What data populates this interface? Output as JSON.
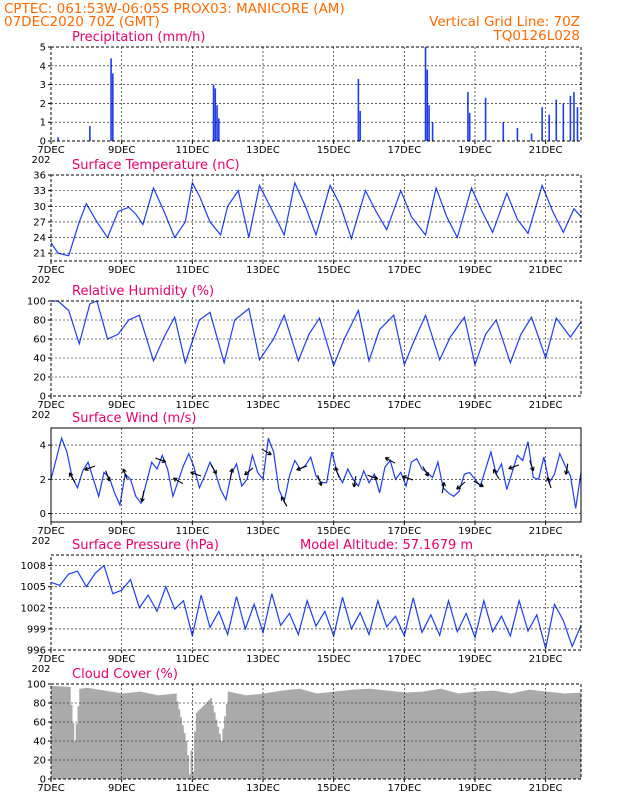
{
  "header": {
    "line1": "CPTEC:   061:53W-06:05S   PROX03: MANICORE (AM)",
    "line2_left": "07DEC2020 70Z (GMT)",
    "line2_right": "Vertical Grid Line: 70Z",
    "line3_right": "TQ0126L028"
  },
  "x_axis": {
    "day_min": 7,
    "day_max": 22,
    "ticks": [
      7,
      9,
      11,
      13,
      15,
      17,
      19,
      21
    ],
    "labels": [
      "7DEC",
      "9DEC",
      "11DEC",
      "13DEC",
      "15DEC",
      "17DEC",
      "19DEC",
      "21DEC"
    ],
    "year_fragment": "202"
  },
  "colors": {
    "header": "#ff6a00",
    "title": "#e6006e",
    "series": "#1f3df0",
    "cloud": "#aaaaaa",
    "grid": "#000000"
  },
  "chart_data": [
    {
      "id": "precip",
      "type": "bar",
      "title": "Precipitation (mm/h)",
      "ylim": [
        0,
        5
      ],
      "yticks": [
        0,
        1,
        2,
        3,
        4,
        5
      ],
      "x": [
        7.2,
        8.1,
        8.7,
        8.75,
        11.6,
        11.65,
        11.7,
        11.75,
        15.7,
        15.75,
        17.6,
        17.65,
        17.7,
        17.8,
        18.8,
        18.85,
        19.3,
        19.8,
        20.2,
        20.6,
        20.9,
        21.1,
        21.3,
        21.5,
        21.7,
        21.8,
        21.9
      ],
      "values": [
        0.2,
        0.8,
        4.4,
        3.6,
        3.0,
        2.8,
        1.9,
        1.2,
        3.3,
        1.6,
        5.0,
        3.8,
        1.9,
        1.0,
        2.6,
        1.5,
        2.3,
        1.0,
        0.7,
        0.4,
        1.8,
        1.4,
        2.2,
        2.0,
        2.4,
        2.6,
        1.8
      ]
    },
    {
      "id": "temp",
      "type": "line",
      "title": "Surface Temperature (nC)",
      "ylim": [
        19.5,
        36
      ],
      "yticks": [
        21,
        24,
        27,
        30,
        33,
        36
      ],
      "x": [
        7.0,
        7.2,
        7.5,
        7.8,
        8.0,
        8.3,
        8.6,
        8.9,
        9.2,
        9.4,
        9.6,
        9.9,
        10.2,
        10.5,
        10.8,
        11.0,
        11.2,
        11.5,
        11.8,
        12.0,
        12.3,
        12.6,
        12.9,
        13.2,
        13.6,
        13.9,
        14.2,
        14.5,
        14.9,
        15.2,
        15.5,
        15.9,
        16.2,
        16.5,
        16.9,
        17.2,
        17.6,
        17.9,
        18.2,
        18.5,
        18.9,
        19.2,
        19.5,
        19.9,
        20.2,
        20.5,
        20.9,
        21.2,
        21.5,
        21.8,
        22.0
      ],
      "values": [
        23.0,
        21.0,
        20.5,
        27.0,
        30.5,
        27.0,
        24.0,
        29.0,
        29.8,
        28.5,
        26.5,
        33.5,
        29.0,
        24.0,
        27.0,
        34.5,
        32.0,
        27.0,
        24.5,
        30.0,
        33.0,
        24.0,
        34.0,
        30.0,
        24.5,
        34.5,
        30.0,
        24.5,
        34.0,
        30.0,
        23.8,
        33.0,
        29.0,
        25.5,
        33.0,
        28.0,
        24.5,
        33.5,
        28.0,
        24.0,
        33.5,
        29.0,
        25.0,
        32.5,
        27.5,
        24.8,
        34.0,
        29.0,
        25.0,
        29.5,
        28.0
      ]
    },
    {
      "id": "rh",
      "type": "line",
      "title": "Relative Humidity (%)",
      "ylim": [
        0,
        100
      ],
      "yticks": [
        0,
        20,
        40,
        60,
        80,
        100
      ],
      "x": [
        7.0,
        7.2,
        7.5,
        7.8,
        8.1,
        8.3,
        8.6,
        8.9,
        9.2,
        9.5,
        9.9,
        10.2,
        10.5,
        10.8,
        11.2,
        11.5,
        11.9,
        12.2,
        12.6,
        12.9,
        13.3,
        13.6,
        14.0,
        14.3,
        14.6,
        15.0,
        15.3,
        15.7,
        16.0,
        16.3,
        16.7,
        17.0,
        17.3,
        17.6,
        18.0,
        18.3,
        18.7,
        19.0,
        19.3,
        19.6,
        20.0,
        20.3,
        20.6,
        21.0,
        21.3,
        21.7,
        22.0
      ],
      "values": [
        100,
        100,
        90,
        55,
        97,
        100,
        60,
        65,
        80,
        85,
        37,
        62,
        83,
        35,
        80,
        88,
        35,
        80,
        92,
        38,
        60,
        85,
        37,
        65,
        82,
        32,
        60,
        90,
        37,
        70,
        85,
        33,
        60,
        85,
        38,
        62,
        83,
        33,
        65,
        80,
        35,
        65,
        83,
        40,
        82,
        62,
        78
      ]
    },
    {
      "id": "wind",
      "type": "line",
      "title": "Surface Wind (m/s)",
      "ylim": [
        -0.5,
        5
      ],
      "yticks": [
        0,
        2,
        4
      ],
      "x": [
        7.0,
        7.15,
        7.3,
        7.45,
        7.6,
        7.75,
        7.9,
        8.05,
        8.2,
        8.35,
        8.5,
        8.65,
        8.8,
        8.95,
        9.1,
        9.25,
        9.4,
        9.55,
        9.7,
        9.85,
        10.0,
        10.15,
        10.3,
        10.45,
        10.6,
        10.75,
        10.9,
        11.05,
        11.2,
        11.35,
        11.5,
        11.65,
        11.8,
        11.95,
        12.1,
        12.25,
        12.4,
        12.55,
        12.7,
        12.85,
        13.0,
        13.15,
        13.3,
        13.45,
        13.6,
        13.75,
        13.9,
        14.05,
        14.2,
        14.35,
        14.5,
        14.65,
        14.8,
        14.95,
        15.1,
        15.25,
        15.4,
        15.55,
        15.7,
        15.85,
        16.0,
        16.15,
        16.3,
        16.45,
        16.6,
        16.75,
        16.9,
        17.05,
        17.2,
        17.35,
        17.5,
        17.65,
        17.8,
        17.95,
        18.1,
        18.25,
        18.4,
        18.55,
        18.7,
        18.85,
        19.0,
        19.15,
        19.3,
        19.45,
        19.6,
        19.75,
        19.9,
        20.05,
        20.2,
        20.35,
        20.5,
        20.65,
        20.8,
        20.95,
        21.1,
        21.25,
        21.4,
        21.55,
        21.7,
        21.85,
        22.0
      ],
      "values": [
        2.0,
        3.2,
        4.4,
        3.6,
        2.1,
        1.5,
        2.5,
        3.0,
        2.0,
        1.0,
        2.4,
        2.1,
        1.2,
        0.5,
        2.3,
        2.0,
        1.0,
        0.6,
        1.8,
        3.0,
        2.6,
        3.4,
        2.6,
        1.0,
        1.9,
        2.8,
        3.5,
        2.7,
        1.5,
        2.2,
        3.0,
        2.4,
        1.4,
        0.8,
        2.3,
        2.9,
        1.6,
        2.0,
        3.4,
        2.4,
        2.0,
        4.4,
        3.6,
        1.4,
        0.7,
        2.2,
        3.1,
        2.6,
        2.8,
        3.3,
        2.2,
        1.8,
        1.8,
        3.6,
        2.4,
        1.8,
        2.6,
        2.0,
        1.6,
        2.5,
        1.8,
        2.3,
        1.2,
        2.7,
        3.1,
        2.0,
        2.4,
        1.6,
        3.0,
        3.2,
        2.6,
        2.4,
        2.1,
        3.0,
        1.5,
        1.2,
        1.0,
        1.3,
        2.3,
        2.4,
        2.0,
        1.6,
        2.6,
        3.6,
        2.3,
        2.9,
        1.4,
        2.4,
        3.4,
        3.1,
        4.2,
        2.1,
        2.0,
        3.3,
        1.8,
        2.3,
        3.5,
        2.8,
        2.2,
        0.3,
        2.4
      ]
    },
    {
      "id": "pressure",
      "type": "line",
      "title": "Surface Pressure (hPa)",
      "annotation": "Model Altitude: 57.1679 m",
      "ylim": [
        996,
        1009.5
      ],
      "yticks": [
        996,
        999,
        1002,
        1005,
        1008
      ],
      "x": [
        7.0,
        7.25,
        7.5,
        7.75,
        8.0,
        8.25,
        8.5,
        8.75,
        9.0,
        9.25,
        9.5,
        9.75,
        10.0,
        10.25,
        10.5,
        10.75,
        11.0,
        11.25,
        11.5,
        11.75,
        12.0,
        12.25,
        12.5,
        12.75,
        13.0,
        13.25,
        13.5,
        13.75,
        14.0,
        14.25,
        14.5,
        14.75,
        15.0,
        15.25,
        15.5,
        15.75,
        16.0,
        16.25,
        16.5,
        16.75,
        17.0,
        17.25,
        17.5,
        17.75,
        18.0,
        18.25,
        18.5,
        18.75,
        19.0,
        19.25,
        19.5,
        19.75,
        20.0,
        20.25,
        20.5,
        20.75,
        21.0,
        21.25,
        21.5,
        21.75,
        22.0
      ],
      "values": [
        1005.6,
        1005.2,
        1006.8,
        1007.2,
        1005.0,
        1006.9,
        1008.0,
        1004.0,
        1004.5,
        1006.0,
        1002.0,
        1003.8,
        1001.5,
        1005.0,
        1001.8,
        1003.0,
        998.0,
        1003.8,
        999.2,
        1001.5,
        998.2,
        1003.6,
        999.0,
        1002.5,
        998.5,
        1004.0,
        999.5,
        1001.2,
        998.2,
        1003.0,
        999.4,
        1001.5,
        998.0,
        1003.5,
        999.0,
        1001.3,
        998.2,
        1003.0,
        999.3,
        1000.8,
        998.0,
        1003.4,
        998.5,
        1001.0,
        998.1,
        1003.0,
        998.6,
        1001.2,
        997.8,
        1003.0,
        998.6,
        1000.8,
        998.0,
        1003.0,
        998.7,
        1001.0,
        996.2,
        1002.5,
        1000.2,
        996.5,
        999.5
      ]
    },
    {
      "id": "cloud",
      "type": "bar",
      "title": "Cloud Cover (%)",
      "ylim": [
        0,
        100
      ],
      "yticks": [
        0,
        20,
        40,
        60,
        80,
        100
      ],
      "x": [
        7.0,
        7.5,
        7.65,
        7.8,
        8.0,
        8.5,
        9.0,
        9.5,
        10.0,
        10.5,
        10.8,
        10.85,
        10.9,
        10.95,
        11.0,
        11.05,
        11.1,
        11.5,
        11.8,
        12.0,
        12.5,
        13.0,
        13.5,
        14.0,
        14.5,
        15.0,
        15.5,
        16.0,
        16.5,
        17.0,
        17.5,
        18.0,
        18.5,
        19.0,
        19.5,
        20.0,
        20.5,
        21.0,
        21.5,
        22.0
      ],
      "values": [
        98,
        97,
        40,
        95,
        96,
        93,
        90,
        92,
        88,
        90,
        40,
        25,
        5,
        30,
        8,
        50,
        70,
        85,
        40,
        92,
        88,
        90,
        93,
        95,
        90,
        92,
        94,
        95,
        93,
        91,
        92,
        95,
        90,
        92,
        93,
        90,
        94,
        92,
        90,
        91
      ]
    }
  ]
}
